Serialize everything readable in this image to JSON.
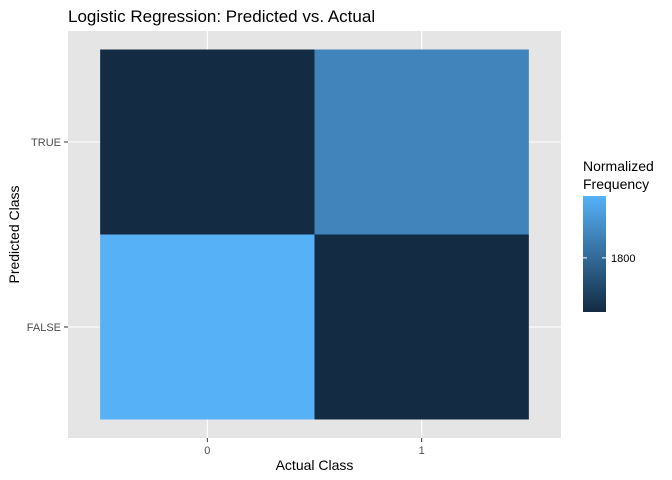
{
  "chart_data": {
    "type": "heatmap",
    "title": "Logistic Regression: Predicted vs. Actual",
    "xlabel": "Actual Class",
    "ylabel": "Predicted Class",
    "x_categories": [
      "0",
      "1"
    ],
    "y_categories": [
      "FALSE",
      "TRUE"
    ],
    "cells": [
      {
        "x": "0",
        "y": "FALSE",
        "value": 2000
      },
      {
        "x": "1",
        "y": "FALSE",
        "value": 1625
      },
      {
        "x": "0",
        "y": "TRUE",
        "value": 1625
      },
      {
        "x": "1",
        "y": "TRUE",
        "value": 1875
      }
    ],
    "legend": {
      "title_lines": [
        "Normalized",
        "Frequency"
      ],
      "ticks": [
        1800
      ],
      "range": [
        1625,
        2000
      ],
      "color_low": "#132b43",
      "color_high": "#56b1f7",
      "placement": "right"
    },
    "panel_background": "#e5e5e5",
    "grid": true
  }
}
